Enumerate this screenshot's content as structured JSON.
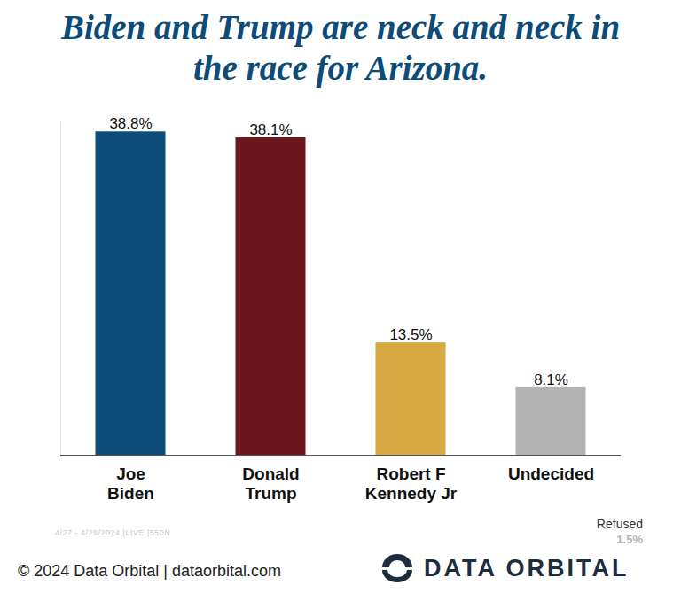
{
  "chart_data": {
    "type": "bar",
    "title": "Biden and Trump are neck and neck in the race for Arizona.",
    "categories": [
      "Joe\nBiden",
      "Donald\nTrump",
      "Robert F\nKennedy Jr",
      "Undecided"
    ],
    "values": [
      38.8,
      38.1,
      13.5,
      8.1
    ],
    "value_labels": [
      "38.8%",
      "38.1%",
      "13.5%",
      "8.1%"
    ],
    "colors": [
      "#0e4c79",
      "#6b171d",
      "#d9a943",
      "#b3b3b3"
    ],
    "ylim": [
      0,
      40
    ],
    "data_labels": true,
    "tick_labels": "x",
    "grid": false,
    "annotations": [
      "4/27 - 4/29/2024 |LIVE |550N",
      "Refused",
      "1.5%",
      "© 2024 Data Orbital | dataorbital.com",
      "DATA ORBITAL"
    ]
  }
}
